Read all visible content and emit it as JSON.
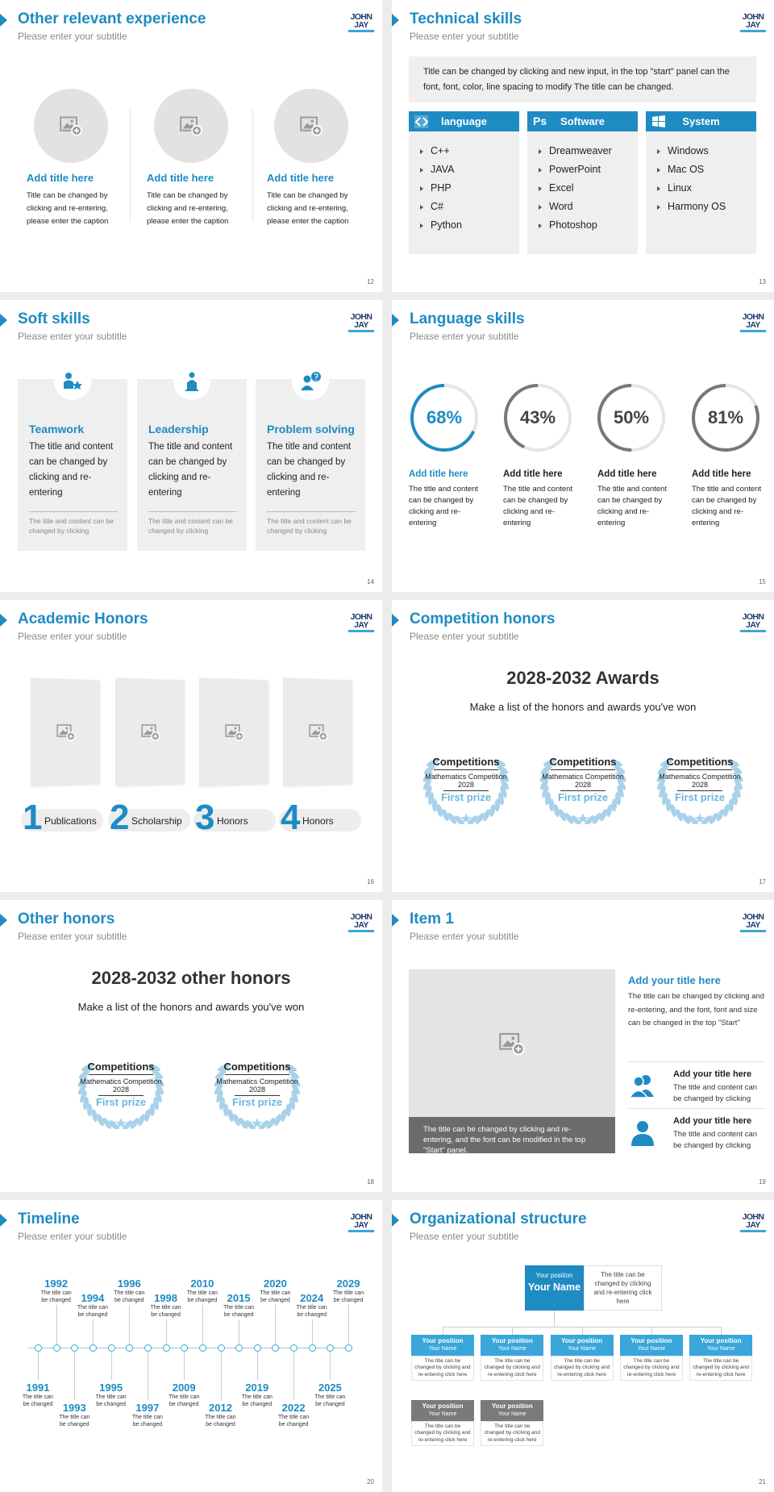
{
  "logo": "JOHN JAY",
  "slides": [
    {
      "title": "Other relevant experience",
      "subtitle": "Please enter your subtitle",
      "page": 12,
      "items": [
        {
          "title": "Add title here",
          "text": "Title can be changed by clicking and re-entering, please enter the caption"
        },
        {
          "title": "Add title here",
          "text": "Title can be changed by clicking and re-entering, please enter the caption"
        },
        {
          "title": "Add title here",
          "text": "Title can be changed by clicking and re-entering, please enter the caption"
        }
      ]
    },
    {
      "title": "Technical skills",
      "subtitle": "Please enter your subtitle",
      "page": 13,
      "intro": "Title can be changed by clicking and new input, in the top \"start\" panel can the font, font, color, line spacing to modify The title can be changed.",
      "columns": [
        {
          "title": "language",
          "items": [
            "C++",
            "JAVA",
            "PHP",
            "C#",
            "Python"
          ]
        },
        {
          "title": "Software",
          "badge": "Ps",
          "items": [
            "Dreamweaver",
            "PowerPoint",
            "Excel",
            "Word",
            "Photoshop"
          ]
        },
        {
          "title": "System",
          "items": [
            "Windows",
            "Mac OS",
            "Linux",
            "Harmony OS"
          ]
        }
      ]
    },
    {
      "title": "Soft skills",
      "subtitle": "Please enter your subtitle",
      "page": 14,
      "cards": [
        {
          "title": "Teamwork",
          "text": "The title and content can be changed by clicking and re-entering",
          "note": "The title and content can be changed by clicking"
        },
        {
          "title": "Leadership",
          "text": "The title and content can be changed by clicking and re-entering",
          "note": "The title and content can be changed by clicking"
        },
        {
          "title": "Problem solving",
          "text": "The title and content can be changed by clicking and re-entering",
          "note": "The title and content can be changed by clicking"
        }
      ]
    },
    {
      "title": "Language skills",
      "subtitle": "Please enter your subtitle",
      "page": 15,
      "items": [
        {
          "value": 68,
          "label": "68%",
          "title": "Add title here",
          "text": "The title and content can be changed by clicking and re-entering"
        },
        {
          "value": 43,
          "label": "43%",
          "title": "Add title here",
          "text": "The title and content can be changed by clicking and re-entering"
        },
        {
          "value": 50,
          "label": "50%",
          "title": "Add title here",
          "text": "The title and content can be changed by clicking and re-entering"
        },
        {
          "value": 81,
          "label": "81%",
          "title": "Add title here",
          "text": "The title and content can be changed by clicking and re-entering"
        }
      ]
    },
    {
      "title": "Academic Honors",
      "subtitle": "Please enter your subtitle",
      "page": 16,
      "items": [
        {
          "number": 1,
          "label": "Publications"
        },
        {
          "number": 2,
          "label": "Scholarship"
        },
        {
          "number": 3,
          "label": "Honors"
        },
        {
          "number": 4,
          "label": "Honors"
        }
      ]
    },
    {
      "title": "Competition honors",
      "subtitle": "Please enter your subtitle",
      "page": 17,
      "heading": "2028-2032 Awards",
      "text": "Make a list of the honors and awards you've won",
      "badges": [
        {
          "title": "Competitions",
          "event": "Mathematics Competition",
          "year": 2028,
          "prize": "First prize"
        },
        {
          "title": "Competitions",
          "event": "Mathematics Competition",
          "year": 2028,
          "prize": "First prize"
        },
        {
          "title": "Competitions",
          "event": "Mathematics Competition",
          "year": 2028,
          "prize": "First prize"
        }
      ]
    },
    {
      "title": "Other honors",
      "subtitle": "Please enter your subtitle",
      "page": 18,
      "heading": "2028-2032 other honors",
      "text": "Make a list of the honors and awards you've won",
      "badges": [
        {
          "title": "Competitions",
          "event": "Mathematics Competition",
          "year": 2028,
          "prize": "First prize"
        },
        {
          "title": "Competitions",
          "event": "Mathematics Competition",
          "year": 2028,
          "prize": "First prize"
        }
      ]
    },
    {
      "title": "Item 1",
      "subtitle": "Please enter your subtitle",
      "page": 19,
      "caption": "The title can be changed by clicking and re-entering, and the font can be modified in the top \"Start\" panel.",
      "heading": "Add your title here",
      "text": "The title can be changed by clicking and re-entering, and the font, font and size can be changed in the top \"Start\"",
      "items": [
        {
          "title": "Add your title here",
          "text": "The title and content can be changed by clicking"
        },
        {
          "title": "Add your title here",
          "text": "The title and content can be changed by clicking"
        }
      ]
    },
    {
      "title": "Timeline",
      "subtitle": "Please enter your subtitle",
      "page": 20,
      "events": [
        {
          "year": 1991,
          "text": "The title can be changed"
        },
        {
          "year": 1992,
          "text": "The title can be changed"
        },
        {
          "year": 1993,
          "text": "The title can be changed"
        },
        {
          "year": 1994,
          "text": "The title can be changed"
        },
        {
          "year": 1995,
          "text": "The title can be changed"
        },
        {
          "year": 1996,
          "text": "The title can be changed"
        },
        {
          "year": 1997,
          "text": "The title can be changed"
        },
        {
          "year": 1998,
          "text": "The title can be changed"
        },
        {
          "year": 2009,
          "text": "The title can be changed"
        },
        {
          "year": 2010,
          "text": "The title can be changed"
        },
        {
          "year": 2012,
          "text": "The title can be changed"
        },
        {
          "year": 2015,
          "text": "The title can be changed"
        },
        {
          "year": 2019,
          "text": "The title can be changed"
        },
        {
          "year": 2020,
          "text": "The title can be changed"
        },
        {
          "year": 2022,
          "text": "The title can be changed"
        },
        {
          "year": 2024,
          "text": "The title can be changed"
        },
        {
          "year": 2025,
          "text": "The title can be changed"
        },
        {
          "year": 2029,
          "text": "The title can be changed"
        }
      ]
    },
    {
      "title": "Organizational structure",
      "subtitle": "Please enter your subtitle",
      "page": 21,
      "head": {
        "position": "Your position",
        "name": "Your Name",
        "text": "The title can be changed by clicking and re-entering click here"
      },
      "units": [
        {
          "position": "Your position",
          "name": "Your Name",
          "text": "The title can be changed by clicking and re-entering click here",
          "color": "#3aa6da"
        },
        {
          "position": "Your position",
          "name": "Your Name",
          "text": "The title can be changed by clicking and re-entering click here",
          "color": "#3aa6da"
        },
        {
          "position": "Your position",
          "name": "Your Name",
          "text": "The title can be changed by clicking and re-entering click here",
          "color": "#3aa6da"
        },
        {
          "position": "Your position",
          "name": "Your Name",
          "text": "The title can be changed by clicking and re-entering click here",
          "color": "#3aa6da"
        },
        {
          "position": "Your position",
          "name": "Your Name",
          "text": "The title can be changed by clicking and re-entering click here",
          "color": "#3aa6da"
        },
        {
          "position": "Your position",
          "name": "Your Name",
          "text": "The title can be changed by clicking and re-entering click here",
          "color": "#7a7a7a"
        },
        {
          "position": "Your position",
          "name": "Your Name",
          "text": "The title can be changed by clicking and re-entering click here",
          "color": "#7a7a7a"
        }
      ]
    }
  ]
}
